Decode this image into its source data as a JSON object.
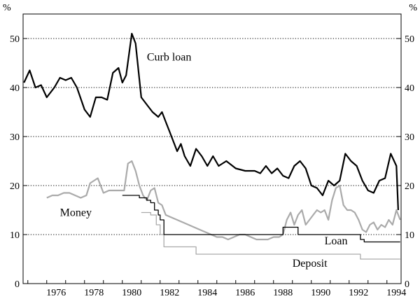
{
  "chart_data": {
    "type": "line",
    "y_unit_left": "%",
    "y_unit_right": "%",
    "xlim": [
      1974.75,
      1994.75
    ],
    "ylim": [
      0,
      55
    ],
    "x_ticks": [
      "1976",
      "1978",
      "1980",
      "1982",
      "1984",
      "1986",
      "1988",
      "1990",
      "1992",
      "1994"
    ],
    "y_ticks": [
      "0",
      "10",
      "20",
      "30",
      "40",
      "50"
    ],
    "grid": "horizontal-dotted",
    "series": [
      {
        "name": "Curb loan",
        "color": "#000000",
        "x": [
          1974.8,
          1975.1,
          1975.4,
          1975.7,
          1976.0,
          1976.4,
          1976.7,
          1977.0,
          1977.3,
          1977.6,
          1978.0,
          1978.3,
          1978.6,
          1978.9,
          1979.2,
          1979.5,
          1979.8,
          1980.0,
          1980.2,
          1980.5,
          1980.7,
          1981.0,
          1981.3,
          1981.6,
          1981.9,
          1982.1,
          1982.3,
          1982.5,
          1982.7,
          1982.9,
          1983.1,
          1983.3,
          1983.6,
          1983.9,
          1984.2,
          1984.5,
          1984.8,
          1985.1,
          1985.5,
          1986.0,
          1986.5,
          1987.0,
          1987.3,
          1987.6,
          1987.9,
          1988.2,
          1988.5,
          1988.8,
          1989.1,
          1989.4,
          1989.7,
          1990.0,
          1990.3,
          1990.6,
          1990.9,
          1991.2,
          1991.5,
          1991.8,
          1992.1,
          1992.4,
          1992.7,
          1993.0,
          1993.3,
          1993.6,
          1993.9,
          1994.2,
          1994.5,
          1994.6
        ],
        "values": [
          41,
          43.5,
          40,
          40.5,
          38,
          40,
          42,
          41.5,
          42,
          40,
          35.5,
          34,
          38,
          38,
          37.5,
          43,
          44,
          41,
          42.5,
          51,
          49,
          38,
          36.5,
          35,
          34,
          35,
          33,
          31,
          29,
          27,
          28.5,
          26,
          24,
          27.5,
          26,
          24,
          26,
          24,
          25,
          23.5,
          23,
          23,
          22.5,
          24,
          22.5,
          23.5,
          22,
          21.5,
          24,
          25,
          23.5,
          20,
          19.5,
          18,
          21,
          20,
          21,
          26.5,
          25,
          24,
          21,
          19,
          18.5,
          21,
          21.5,
          26.5,
          24,
          15
        ]
      },
      {
        "name": "Money",
        "color": "#aaaaaa",
        "x": [
          1976.0,
          1976.3,
          1976.6,
          1976.9,
          1977.2,
          1977.5,
          1977.8,
          1978.1,
          1978.3,
          1978.5,
          1978.7,
          1979.0,
          1979.3,
          1979.6,
          1979.9,
          1980.1,
          1980.3,
          1980.5,
          1980.7,
          1980.9,
          1981.1,
          1981.3,
          1981.5,
          1981.7,
          1981.9,
          1982.1,
          1982.3,
          1982.6,
          1982.9,
          1983.2,
          1983.5,
          1983.8,
          1984.1,
          1984.4,
          1984.7,
          1985.0,
          1985.3,
          1985.6,
          1985.9,
          1986.2,
          1986.5,
          1986.8,
          1987.1,
          1987.4,
          1987.7,
          1988.0,
          1988.3,
          1988.5,
          1988.7,
          1988.9,
          1989.1,
          1989.3,
          1989.5,
          1989.7,
          1989.9,
          1990.1,
          1990.3,
          1990.5,
          1990.7,
          1990.9,
          1991.1,
          1991.3,
          1991.5,
          1991.7,
          1991.9,
          1992.1,
          1992.3,
          1992.5,
          1992.7,
          1992.9,
          1993.1,
          1993.3,
          1993.5,
          1993.7,
          1993.9,
          1994.1,
          1994.3,
          1994.5,
          1994.7
        ],
        "values": [
          17.5,
          18,
          18,
          18.5,
          18.5,
          18,
          17.5,
          18,
          20.5,
          21,
          21.5,
          18.5,
          19,
          19,
          19,
          19,
          24.5,
          25,
          23,
          20,
          18,
          17,
          19,
          19.5,
          16.5,
          16,
          14,
          13.5,
          13,
          12.5,
          12,
          11.5,
          11,
          10.5,
          10,
          9.5,
          9.5,
          9,
          9.5,
          10,
          10,
          9.5,
          9,
          9,
          9,
          9.5,
          9.5,
          10,
          13,
          14.5,
          12,
          14,
          15,
          12,
          13,
          14,
          15,
          14.5,
          15,
          13,
          17,
          19.5,
          20,
          16,
          15,
          15,
          14.5,
          13,
          11,
          10.5,
          12,
          12.5,
          11,
          12,
          11.5,
          13,
          12,
          15,
          13
        ]
      },
      {
        "name": "Loan",
        "color": "#000000",
        "step": true,
        "x": [
          1980.0,
          1980.5,
          1980.9,
          1981.3,
          1981.5,
          1981.7,
          1981.9,
          1982.0,
          1982.2,
          1988.4,
          1988.5,
          1989.2,
          1989.3,
          1992.5,
          1992.6,
          1992.8,
          1994.7
        ],
        "values": [
          18,
          18,
          17.5,
          17,
          16.5,
          15,
          14,
          13,
          10,
          10,
          11.5,
          11.5,
          10,
          10,
          9,
          8.5,
          8.5
        ]
      },
      {
        "name": "Deposit",
        "color": "#aaaaaa",
        "step": true,
        "x": [
          1981.0,
          1981.5,
          1981.8,
          1982.0,
          1982.2,
          1983.8,
          1983.9,
          1992.5,
          1992.6,
          1994.7
        ],
        "values": [
          14.5,
          14,
          12,
          10,
          7.5,
          7.5,
          6,
          6,
          5,
          5
        ]
      }
    ],
    "annotations": [
      {
        "text": "Curb loan",
        "x": 1981.3,
        "y": 45.5
      },
      {
        "text": "Money",
        "x": 1976.7,
        "y": 13.8
      },
      {
        "text": "Loan",
        "x": 1990.7,
        "y": 8.0
      },
      {
        "text": "Deposit",
        "x": 1989.0,
        "y": 3.4
      }
    ]
  }
}
